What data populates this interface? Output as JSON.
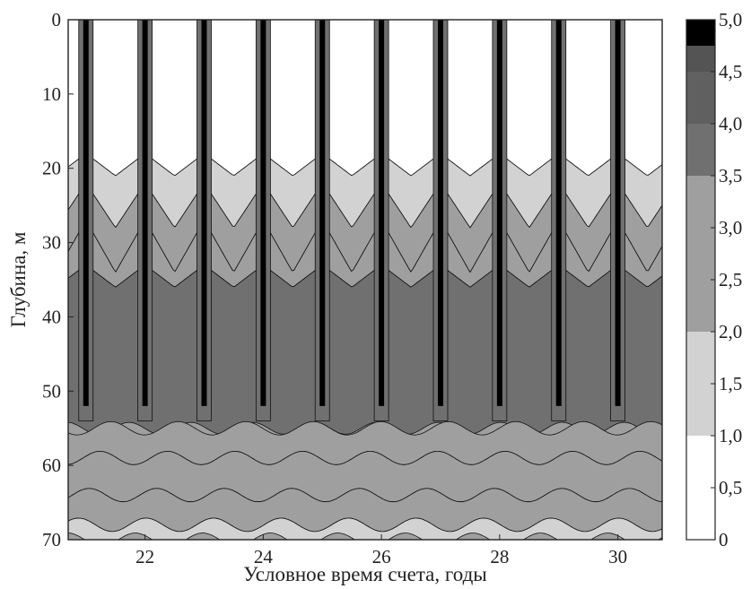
{
  "chart_data": {
    "type": "heatmap",
    "title": "",
    "xlabel": "Условное время счета, годы",
    "ylabel": "Глубина, м",
    "xlim": [
      20.7,
      30.75
    ],
    "ylim": [
      0,
      70
    ],
    "y_inverted": true,
    "x_ticks": [
      22,
      24,
      26,
      28,
      30
    ],
    "x_tick_labels": [
      "22",
      "24",
      "26",
      "28",
      "30"
    ],
    "y_ticks": [
      0,
      10,
      20,
      30,
      40,
      50,
      60,
      70
    ],
    "y_tick_labels": [
      "0",
      "10",
      "20",
      "30",
      "40",
      "50",
      "60",
      "70"
    ],
    "colorbar": {
      "range": [
        0,
        5.0
      ],
      "ticks": [
        0,
        0.5,
        1.0,
        1.5,
        2.0,
        2.5,
        3.0,
        3.5,
        4.0,
        4.5,
        5.0
      ],
      "tick_labels": [
        "0",
        "0,5",
        "1,0",
        "1,5",
        "2,0",
        "2,5",
        "3,0",
        "3,5",
        "4,0",
        "4,5",
        "5,0"
      ],
      "levels": [
        {
          "from": 0.0,
          "to": 1.0,
          "color": "#ffffff"
        },
        {
          "from": 1.0,
          "to": 2.0,
          "color": "#d2d2d2"
        },
        {
          "from": 2.0,
          "to": 3.5,
          "color": "#9f9f9f"
        },
        {
          "from": 3.5,
          "to": 4.0,
          "color": "#707070"
        },
        {
          "from": 4.0,
          "to": 4.5,
          "color": "#606060"
        },
        {
          "from": 4.5,
          "to": 4.75,
          "color": "#545454"
        },
        {
          "from": 4.75,
          "to": 5.0,
          "color": "#000000"
        }
      ]
    },
    "grid": false,
    "pattern": {
      "period_years": 1.0,
      "first_front_year": 21.0,
      "cycles": 10,
      "surface_layer_value": 0.5,
      "mixed_layer_depth_min": 18,
      "mixed_layer_depth_max": 21,
      "thermocline_band_values": [
        2.0,
        2.5,
        3.0
      ],
      "deep_layer_value": 4.0,
      "lower_layers": [
        {
          "depth": 55,
          "value": 3.5
        },
        {
          "depth": 59,
          "value": 3.0
        },
        {
          "depth": 64,
          "value": 2.5
        },
        {
          "depth": 68,
          "value": 2.0
        }
      ],
      "column_value_max": 5.0
    }
  }
}
